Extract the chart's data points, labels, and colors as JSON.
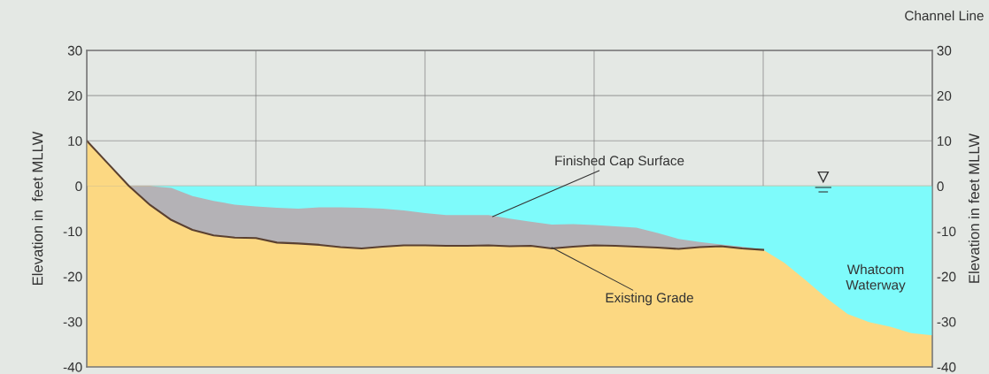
{
  "chart_data": {
    "type": "area",
    "ylabel": "Elevation in  feet MLLW",
    "y2label": "Elevation in feet MLLW",
    "categories": [
      null,
      null,
      null,
      null,
      null,
      null,
      null,
      null,
      null,
      null,
      null,
      null,
      null,
      null,
      null,
      null,
      null,
      null,
      null,
      null,
      null,
      null,
      null,
      null,
      null,
      null,
      null,
      null,
      null,
      null,
      null,
      null,
      null,
      null,
      null,
      null,
      null,
      null,
      null,
      null,
      null
    ],
    "ylim": [
      -40,
      30
    ],
    "yticks": [
      -40,
      -30,
      -20,
      -10,
      0,
      10,
      20,
      30
    ],
    "y2lim": [
      -40,
      30
    ],
    "y2ticks": [
      -40,
      -30,
      -20,
      -10,
      0,
      10,
      20,
      30
    ],
    "tick_labels": "y",
    "grid": true,
    "series": [
      {
        "color": "#fcd882",
        "values": [
          -40,
          -40,
          -40,
          -40,
          -40,
          -40,
          -40,
          -40,
          -40,
          -40,
          -40,
          -40,
          -40,
          -40,
          -40,
          -40,
          -40,
          -40,
          -40,
          -40,
          -40,
          -40,
          -40,
          -40,
          -40,
          -40,
          -40,
          -40,
          -40,
          -40,
          -40,
          -40,
          -40,
          -40,
          -40,
          -40,
          -40,
          -40,
          -40,
          -40,
          -40
        ]
      },
      {
        "color": "#fcd882",
        "values": [
          10,
          5,
          0,
          null,
          null,
          null,
          null,
          null,
          null,
          null,
          null,
          null,
          null,
          null,
          null,
          null,
          null,
          null,
          null,
          null,
          null,
          null,
          null,
          null,
          null,
          null,
          null,
          null,
          null,
          null,
          null,
          null,
          null,
          null,
          null,
          null,
          null,
          null,
          null,
          null,
          null
        ]
      },
      {
        "color": "#b4b2b6",
        "values": [
          0,
          0,
          0,
          -4.2,
          -7.5,
          -9.7,
          -10.9,
          -11.4,
          -11.5,
          -12.5,
          -12.7,
          -13.0,
          -13.5,
          -13.8,
          -13.4,
          -13.1,
          -13.1,
          -13.2,
          -13.2,
          -13.1,
          -13.3,
          -13.2,
          -13.8,
          -13.4,
          -13.1,
          -13.2,
          -13.4,
          -13.6,
          -13.9,
          -13.5,
          -13.3,
          -13.8,
          -14.1,
          null,
          null,
          null,
          null,
          null,
          null,
          null,
          null
        ]
      },
      {
        "color": "#7efbfb",
        "values": [
          0,
          0,
          0,
          0,
          -0.4,
          -2.2,
          -3.3,
          -4.1,
          -4.5,
          -4.8,
          -5.0,
          -4.7,
          -4.7,
          -4.8,
          -5.0,
          -5.4,
          -6.0,
          -6.4,
          -6.4,
          -6.4,
          -7.2,
          -7.9,
          -8.5,
          -8.4,
          -8.6,
          -8.9,
          -9.2,
          -10.4,
          -11.7,
          -12.4,
          -12.9,
          -13.4,
          -14.1,
          -17.0,
          -20.8,
          -24.8,
          -28.3,
          -30.1,
          -31.1,
          -32.5,
          -33.0
        ]
      },
      {
        "type": "line",
        "color": "#5a4030",
        "values": [
          10,
          5,
          0,
          -4.2,
          -7.5,
          -9.7,
          -10.9,
          -11.4,
          -11.5,
          -12.5,
          -12.7,
          -13.0,
          -13.5,
          -13.8,
          -13.4,
          -13.1,
          -13.1,
          -13.2,
          -13.2,
          -13.1,
          -13.3,
          -13.2,
          -13.8,
          -13.4,
          -13.1,
          -13.2,
          -13.4,
          -13.6,
          -13.9,
          -13.5,
          -13.3,
          -13.8,
          -14.1,
          null,
          null,
          null,
          null,
          null,
          null,
          null,
          null
        ]
      }
    ],
    "annotations": [
      "Finished Cap Surface",
      "Existing Grade",
      "Whatcom\nWaterway",
      "Channel Line"
    ]
  }
}
